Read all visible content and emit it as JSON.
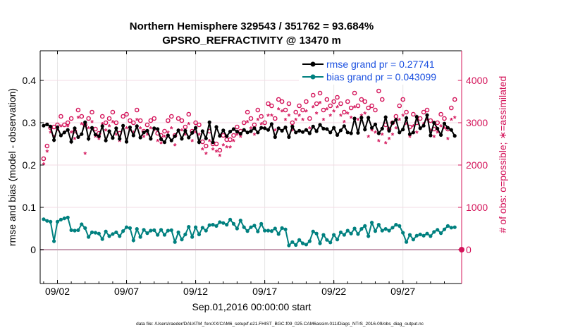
{
  "chart_data": {
    "type": "line",
    "title": "Northern Hemisphere 329543 / 351762 = 93.684%",
    "subtitle": "GPSRO_REFRACTIVITY @ 13470 m",
    "xlabel": "Sep.01,2016 00:00:00 start",
    "ylabel": "rmse and bias (model - observation)",
    "y2label": "# of obs: o=possible; ∗=assimilated",
    "footer": "data file: /Users/raeder/DAI/ATM_forcXX/CAM6_setup/f.e21.FHIST_BGC.f09_025.CAM6assim.011/Diags_NTrS_2016-09/obs_diag_output.nc",
    "xlim": [
      0.25,
      30.75
    ],
    "ylim": [
      -0.08,
      0.47
    ],
    "y2lim": [
      -800,
      4700
    ],
    "x_ticks": [
      {
        "x": 1.5,
        "label": "09/02"
      },
      {
        "x": 6.5,
        "label": "09/07"
      },
      {
        "x": 11.5,
        "label": "09/12"
      },
      {
        "x": 16.5,
        "label": "09/17"
      },
      {
        "x": 21.5,
        "label": "09/22"
      },
      {
        "x": 26.5,
        "label": "09/27"
      }
    ],
    "y_ticks": [
      {
        "v": 0,
        "label": "0"
      },
      {
        "v": 0.1,
        "label": "0.1"
      },
      {
        "v": 0.2,
        "label": "0.2"
      },
      {
        "v": 0.3,
        "label": "0.3"
      },
      {
        "v": 0.4,
        "label": "0.4"
      }
    ],
    "y2_ticks": [
      {
        "v": 0,
        "label": "0"
      },
      {
        "v": 1000,
        "label": "1000"
      },
      {
        "v": 2000,
        "label": "2000"
      },
      {
        "v": 3000,
        "label": "3000"
      },
      {
        "v": 4000,
        "label": "4000"
      }
    ],
    "zero_line": 0,
    "legend": [
      {
        "name": "rmse grand pr = 0.27741",
        "color": "#000000"
      },
      {
        "name": "bias grand pr = 0.043099",
        "color": "#00807f"
      }
    ],
    "colors": {
      "rmse": "#000000",
      "bias": "#00807f",
      "obs": "#d4145a",
      "legend_text": "#1a4fe0",
      "zero_line": "#c8a0b4"
    },
    "series": [
      {
        "name": "rmse",
        "x": [
          0.5,
          0.75,
          1,
          1.25,
          1.5,
          1.75,
          2,
          2.25,
          2.5,
          2.75,
          3,
          3.25,
          3.5,
          3.75,
          4,
          4.25,
          4.5,
          4.75,
          5,
          5.25,
          5.5,
          5.75,
          6,
          6.25,
          6.5,
          6.75,
          7,
          7.25,
          7.5,
          7.75,
          8,
          8.25,
          8.5,
          8.75,
          9,
          9.25,
          9.5,
          9.75,
          10,
          10.25,
          10.5,
          10.75,
          11,
          11.25,
          11.5,
          11.75,
          12,
          12.25,
          12.5,
          12.75,
          13,
          13.25,
          13.5,
          13.75,
          14,
          14.25,
          14.5,
          14.75,
          15,
          15.25,
          15.5,
          15.75,
          16,
          16.25,
          16.5,
          16.75,
          17,
          17.25,
          17.5,
          17.75,
          18,
          18.25,
          18.5,
          18.75,
          19,
          19.25,
          19.5,
          19.75,
          20,
          20.25,
          20.5,
          20.75,
          21,
          21.25,
          21.5,
          21.75,
          22,
          22.25,
          22.5,
          22.75,
          23,
          23.25,
          23.5,
          23.75,
          24,
          24.25,
          24.5,
          24.75,
          25,
          25.25,
          25.5,
          25.75,
          26,
          26.25,
          26.5,
          26.75,
          27,
          27.25,
          27.5,
          27.75,
          28,
          28.25,
          28.5,
          28.75,
          29,
          29.25,
          29.5,
          29.75,
          30,
          30.25
        ],
        "values": [
          0.293,
          0.296,
          0.291,
          0.259,
          0.289,
          0.27,
          0.277,
          0.283,
          0.255,
          0.287,
          0.266,
          0.273,
          0.301,
          0.262,
          0.288,
          0.272,
          0.268,
          0.292,
          0.258,
          0.28,
          0.264,
          0.287,
          0.262,
          0.293,
          0.255,
          0.289,
          0.27,
          0.292,
          0.265,
          0.277,
          0.281,
          0.262,
          0.287,
          0.285,
          0.261,
          0.254,
          0.27,
          0.258,
          0.268,
          0.282,
          0.262,
          0.281,
          0.265,
          0.276,
          0.288,
          0.254,
          0.28,
          0.263,
          0.301,
          0.254,
          0.29,
          0.269,
          0.282,
          0.268,
          0.279,
          0.285,
          0.279,
          0.274,
          0.283,
          0.277,
          0.28,
          0.287,
          0.277,
          0.288,
          0.287,
          0.283,
          0.297,
          0.266,
          0.287,
          0.281,
          0.289,
          0.266,
          0.291,
          0.277,
          0.281,
          0.278,
          0.283,
          0.275,
          0.291,
          0.28,
          0.295,
          0.286,
          0.285,
          0.277,
          0.288,
          0.271,
          0.282,
          0.292,
          0.277,
          0.275,
          0.31,
          0.276,
          0.312,
          0.284,
          0.312,
          0.288,
          0.296,
          0.275,
          0.286,
          0.313,
          0.281,
          0.3,
          0.307,
          0.277,
          0.284,
          0.311,
          0.273,
          0.277,
          0.314,
          0.287,
          0.293,
          0.318,
          0.27,
          0.3,
          0.286,
          0.271,
          0.298,
          0.288,
          0.283,
          0.269
        ]
      },
      {
        "name": "bias",
        "x": [
          0.5,
          0.75,
          1,
          1.25,
          1.5,
          1.75,
          2,
          2.25,
          2.5,
          2.75,
          3,
          3.25,
          3.5,
          3.75,
          4,
          4.25,
          4.5,
          4.75,
          5,
          5.25,
          5.5,
          5.75,
          6,
          6.25,
          6.5,
          6.75,
          7,
          7.25,
          7.5,
          7.75,
          8,
          8.25,
          8.5,
          8.75,
          9,
          9.25,
          9.5,
          9.75,
          10,
          10.25,
          10.5,
          10.75,
          11,
          11.25,
          11.5,
          11.75,
          12,
          12.25,
          12.5,
          12.75,
          13,
          13.25,
          13.5,
          13.75,
          14,
          14.25,
          14.5,
          14.75,
          15,
          15.25,
          15.5,
          15.75,
          16,
          16.25,
          16.5,
          16.75,
          17,
          17.25,
          17.5,
          17.75,
          18,
          18.25,
          18.5,
          18.75,
          19,
          19.25,
          19.5,
          19.75,
          20,
          20.25,
          20.5,
          20.75,
          21,
          21.25,
          21.5,
          21.75,
          22,
          22.25,
          22.5,
          22.75,
          23,
          23.25,
          23.5,
          23.75,
          24,
          24.25,
          24.5,
          24.75,
          25,
          25.25,
          25.5,
          25.75,
          26,
          26.25,
          26.5,
          26.75,
          27,
          27.25,
          27.5,
          27.75,
          28,
          28.25,
          28.5,
          28.75,
          29,
          29.25,
          29.5,
          29.75,
          30,
          30.25
        ],
        "values": [
          0.072,
          0.068,
          0.066,
          0.02,
          0.066,
          0.071,
          0.074,
          0.076,
          0.046,
          0.045,
          0.046,
          0.06,
          0.051,
          0.03,
          0.041,
          0.04,
          0.038,
          0.025,
          0.043,
          0.032,
          0.037,
          0.041,
          0.032,
          0.044,
          0.053,
          0.051,
          0.022,
          0.049,
          0.03,
          0.047,
          0.039,
          0.045,
          0.046,
          0.035,
          0.047,
          0.035,
          0.045,
          0.046,
          0.018,
          0.041,
          0.024,
          0.036,
          0.054,
          0.03,
          0.053,
          0.036,
          0.052,
          0.045,
          0.058,
          0.059,
          0.056,
          0.065,
          0.063,
          0.059,
          0.071,
          0.061,
          0.05,
          0.069,
          0.053,
          0.044,
          0.053,
          0.057,
          0.043,
          0.061,
          0.045,
          0.045,
          0.044,
          0.05,
          0.037,
          0.051,
          0.048,
          0.01,
          0.018,
          0.011,
          0.023,
          0.015,
          0.012,
          0.02,
          0.043,
          0.038,
          0.015,
          0.035,
          0.023,
          0.017,
          0.035,
          0.024,
          0.041,
          0.035,
          0.045,
          0.038,
          0.05,
          0.037,
          0.049,
          0.056,
          0.032,
          0.064,
          0.044,
          0.059,
          0.045,
          0.049,
          0.045,
          0.052,
          0.059,
          0.056,
          0.04,
          0.018,
          0.035,
          0.024,
          0.033,
          0.036,
          0.033,
          0.038,
          0.032,
          0.042,
          0.047,
          0.039,
          0.048,
          0.056,
          0.052,
          0.053
        ]
      },
      {
        "name": "possible",
        "x": [
          0.5,
          0.75,
          1,
          1.25,
          1.5,
          1.75,
          2,
          2.25,
          2.5,
          2.75,
          3,
          3.25,
          3.5,
          3.75,
          4,
          4.25,
          4.5,
          4.75,
          5,
          5.25,
          5.5,
          5.75,
          6,
          6.25,
          6.5,
          6.75,
          7,
          7.25,
          7.5,
          7.75,
          8,
          8.25,
          8.5,
          8.75,
          9,
          9.25,
          9.5,
          9.75,
          10,
          10.25,
          10.5,
          10.75,
          11,
          11.25,
          11.5,
          11.75,
          12,
          12.25,
          12.5,
          12.75,
          13,
          13.25,
          13.5,
          13.75,
          14,
          14.25,
          14.5,
          14.75,
          15,
          15.25,
          15.5,
          15.75,
          16,
          16.25,
          16.5,
          16.75,
          17,
          17.25,
          17.5,
          17.75,
          18,
          18.25,
          18.5,
          18.75,
          19,
          19.25,
          19.5,
          19.75,
          20,
          20.25,
          20.5,
          20.75,
          21,
          21.25,
          21.5,
          21.75,
          22,
          22.25,
          22.5,
          22.75,
          23,
          23.25,
          23.5,
          23.75,
          24,
          24.25,
          24.5,
          24.75,
          25,
          25.25,
          25.5,
          25.75,
          26,
          26.25,
          26.5,
          26.75,
          27,
          27.25,
          27.5,
          27.75,
          28,
          28.25,
          28.5,
          28.75,
          29,
          29.25,
          29.5,
          29.75,
          30,
          30.25
        ],
        "values": [
          2150,
          2450,
          2880,
          2900,
          2950,
          3150,
          2950,
          3000,
          3100,
          2800,
          3300,
          3150,
          2950,
          3100,
          3250,
          2850,
          2750,
          3150,
          3000,
          3100,
          3250,
          3000,
          2750,
          3150,
          3200,
          3050,
          3000,
          3300,
          3050,
          2800,
          2950,
          3050,
          3100,
          2750,
          2700,
          2800,
          3050,
          3150,
          2700,
          3100,
          3050,
          2900,
          3200,
          2800,
          3000,
          2950,
          2550,
          2450,
          2800,
          2500,
          2500,
          2350,
          2700,
          2600,
          2600,
          2700,
          2900,
          2800,
          3000,
          3250,
          3100,
          2950,
          3300,
          3150,
          3000,
          3450,
          3400,
          3100,
          3550,
          3500,
          3300,
          3450,
          3000,
          3250,
          3400,
          3300,
          3500,
          3100,
          3650,
          3450,
          3700,
          3300,
          3550,
          3400,
          3500,
          3600,
          3450,
          3250,
          3500,
          3350,
          3700,
          3400,
          3550,
          3500,
          3350,
          3400,
          3300,
          3750,
          3550,
          2950,
          2850,
          3000,
          3150,
          3400,
          3550,
          3250,
          2900,
          3200,
          3000,
          3100,
          3250,
          3300,
          3050,
          2850,
          3000,
          3200,
          3100,
          2850,
          3350,
          3550
        ]
      },
      {
        "name": "assimilated",
        "x": [
          0.5,
          0.75,
          1,
          1.25,
          1.5,
          1.75,
          2,
          2.25,
          2.5,
          2.75,
          3,
          3.25,
          3.5,
          3.75,
          4,
          4.25,
          4.5,
          4.75,
          5,
          5.25,
          5.5,
          5.75,
          6,
          6.25,
          6.5,
          6.75,
          7,
          7.25,
          7.5,
          7.75,
          8,
          8.25,
          8.5,
          8.75,
          9,
          9.25,
          9.5,
          9.75,
          10,
          10.25,
          10.5,
          10.75,
          11,
          11.25,
          11.5,
          11.75,
          12,
          12.25,
          12.5,
          12.75,
          13,
          13.25,
          13.5,
          13.75,
          14,
          14.25,
          14.5,
          14.75,
          15,
          15.25,
          15.5,
          15.75,
          16,
          16.25,
          16.5,
          16.75,
          17,
          17.25,
          17.5,
          17.75,
          18,
          18.25,
          18.5,
          18.75,
          19,
          19.25,
          19.5,
          19.75,
          20,
          20.25,
          20.5,
          20.75,
          21,
          21.25,
          21.5,
          21.75,
          22,
          22.25,
          22.5,
          22.75,
          23,
          23.25,
          23.5,
          23.75,
          24,
          24.25,
          24.5,
          24.75,
          25,
          25.25,
          25.5,
          25.75,
          26,
          26.25,
          26.5,
          26.75,
          27,
          27.25,
          27.5,
          27.75,
          28,
          28.25,
          28.5,
          28.75,
          29,
          29.25,
          29.5,
          29.75,
          30,
          30.25
        ],
        "values": [
          2000,
          2300,
          2750,
          2650,
          2800,
          2900,
          2750,
          2900,
          2750,
          2600,
          3100,
          2950,
          2250,
          2850,
          3000,
          2650,
          2600,
          2950,
          2800,
          2900,
          3000,
          2700,
          2550,
          2900,
          2850,
          2800,
          2750,
          3050,
          2850,
          2650,
          2700,
          2850,
          2800,
          2550,
          2500,
          2650,
          2750,
          2850,
          2450,
          2800,
          2800,
          2700,
          2950,
          2550,
          2750,
          2700,
          2350,
          2250,
          2550,
          2350,
          2300,
          2200,
          2450,
          2400,
          2400,
          2550,
          2700,
          2650,
          2800,
          3000,
          2850,
          2700,
          3050,
          2950,
          2850,
          3150,
          3150,
          2800,
          3300,
          3250,
          3050,
          3150,
          2800,
          3050,
          3150,
          3050,
          3250,
          2850,
          3350,
          3200,
          3450,
          3050,
          3300,
          3150,
          3250,
          3350,
          3150,
          3000,
          3200,
          3100,
          3350,
          3050,
          3150,
          3200,
          2650,
          2800,
          2750,
          2550,
          2700,
          2500,
          2600,
          2700,
          2850,
          3050,
          3150,
          2950,
          2650,
          2900,
          2750,
          2850,
          2950,
          3050,
          2800,
          2650,
          2750,
          2900,
          2850,
          2600,
          3050,
          3100
        ]
      }
    ]
  }
}
